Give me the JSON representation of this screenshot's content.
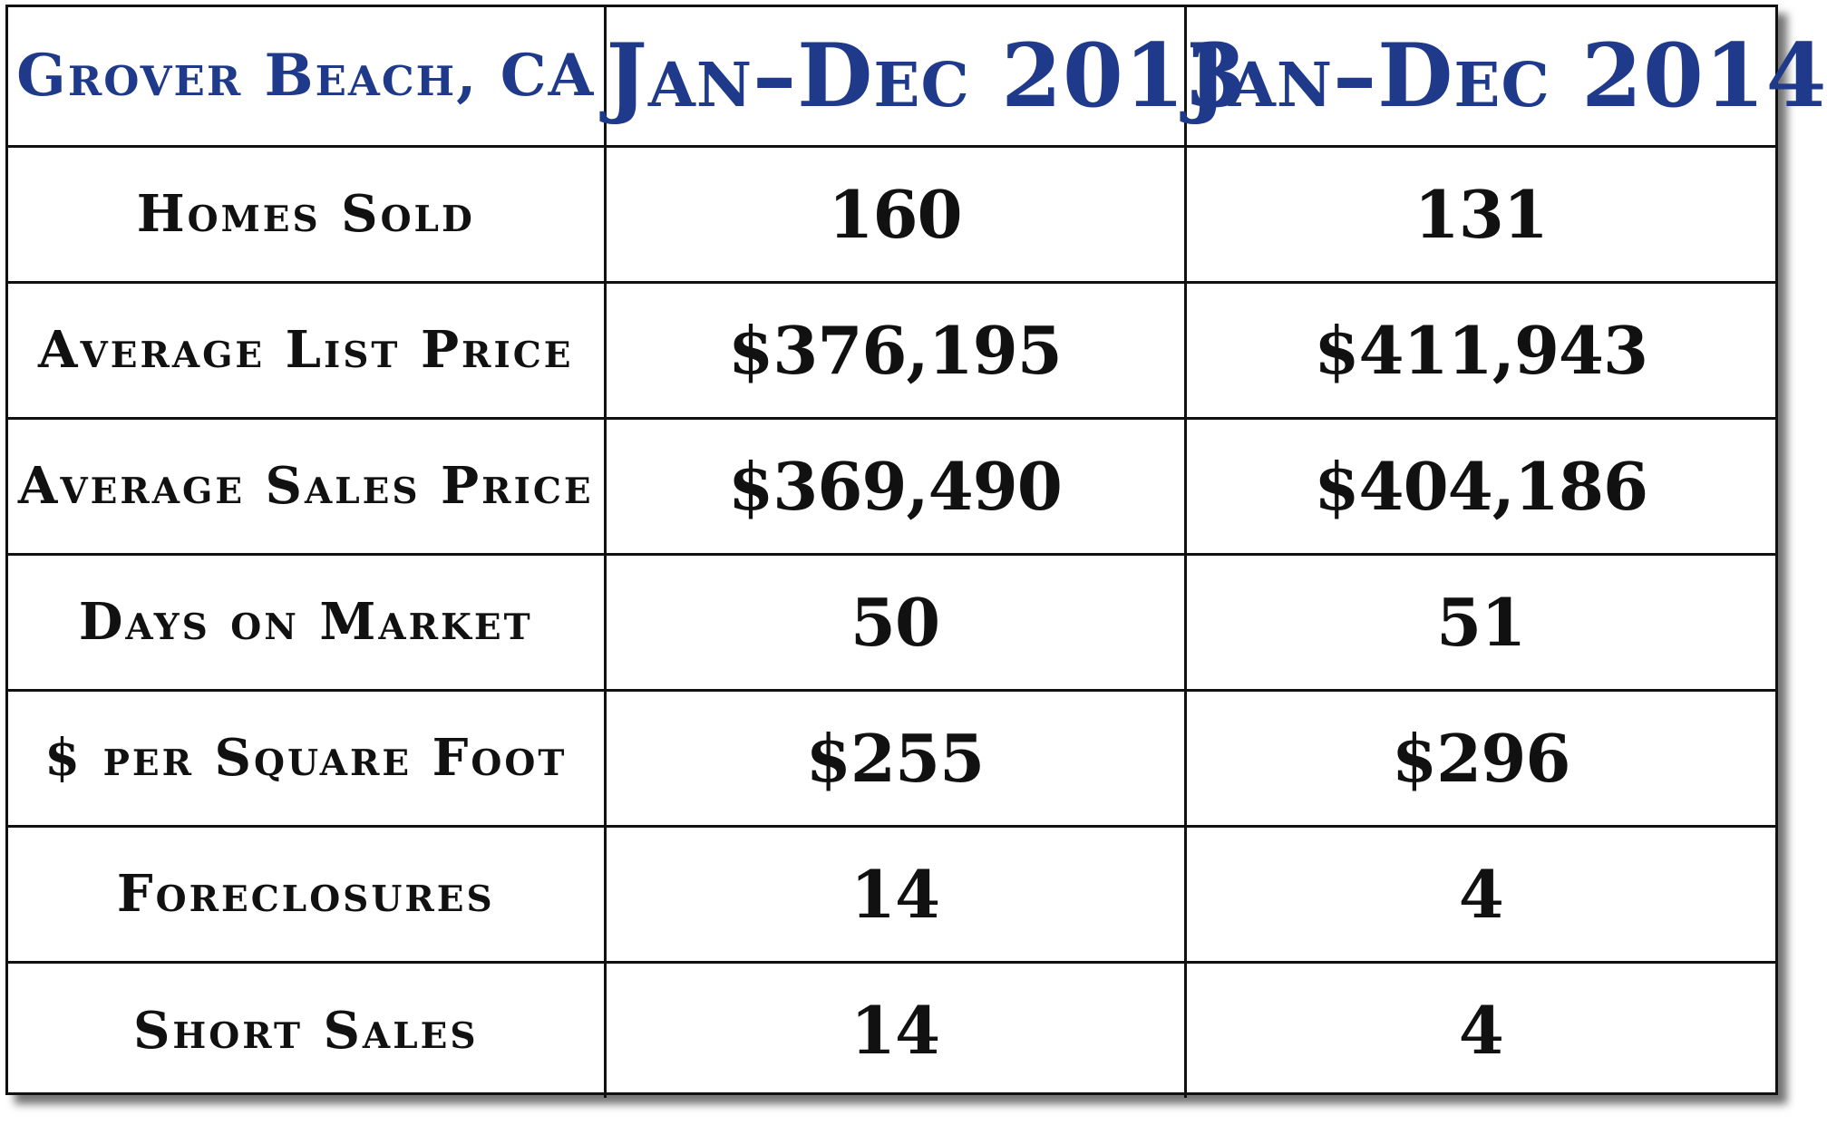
{
  "table": {
    "header": {
      "location": "Grover Beach, CA",
      "period_1": "Jan–Dec 2013",
      "period_2": "Jan–Dec 2014"
    },
    "rows": [
      {
        "label": "Homes Sold",
        "v2013": "160",
        "v2014": "131"
      },
      {
        "label": "Average List Price",
        "v2013": "$376,195",
        "v2014": "$411,943"
      },
      {
        "label": "Average Sales Price",
        "v2013": "$369,490",
        "v2014": "$404,186"
      },
      {
        "label": "Days on Market",
        "v2013": "50",
        "v2014": "51"
      },
      {
        "label": "$ per Square Foot",
        "v2013": "$255",
        "v2014": "$296"
      },
      {
        "label": "Foreclosures",
        "v2013": "14",
        "v2014": "4"
      },
      {
        "label": "Short Sales",
        "v2013": "14",
        "v2014": "4"
      }
    ]
  },
  "colors": {
    "header_text": "#1f3a8a",
    "body_text": "#111111",
    "border": "#111111",
    "background": "#ffffff"
  }
}
